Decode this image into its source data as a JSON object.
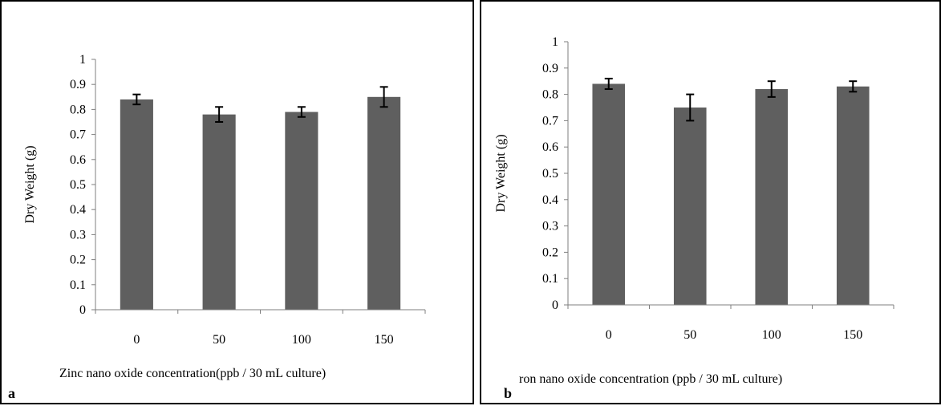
{
  "chart_data": [
    {
      "type": "bar",
      "panel_label": "a",
      "categories": [
        "0",
        "50",
        "100",
        "150"
      ],
      "values": [
        0.84,
        0.78,
        0.79,
        0.85
      ],
      "errors": [
        0.02,
        0.03,
        0.02,
        0.04
      ],
      "xlabel": "Zinc nano oxide concentration(ppb / 30 mL culture)",
      "ylabel": "Dry  Weight (g)",
      "ylim": [
        0,
        1
      ],
      "yticks": [
        "0",
        "0.1",
        "0.2",
        "0.3",
        "0.4",
        "0.5",
        "0.6",
        "0.7",
        "0.8",
        "0.9",
        "1"
      ],
      "bar_color": "#5f5f5f",
      "grid": false
    },
    {
      "type": "bar",
      "panel_label": "b",
      "categories": [
        "0",
        "50",
        "100",
        "150"
      ],
      "values": [
        0.84,
        0.75,
        0.82,
        0.83
      ],
      "errors": [
        0.02,
        0.05,
        0.03,
        0.02
      ],
      "xlabel": "ron nano oxide concentration (ppb / 30  mL culture)",
      "ylabel": "Dry  Weight  (g)",
      "ylim": [
        0,
        1
      ],
      "yticks": [
        "0",
        "0.1",
        "0.2",
        "0.3",
        "0.4",
        "0.5",
        "0.6",
        "0.7",
        "0.8",
        "0.9",
        "1"
      ],
      "bar_color": "#5f5f5f",
      "grid": false
    }
  ]
}
